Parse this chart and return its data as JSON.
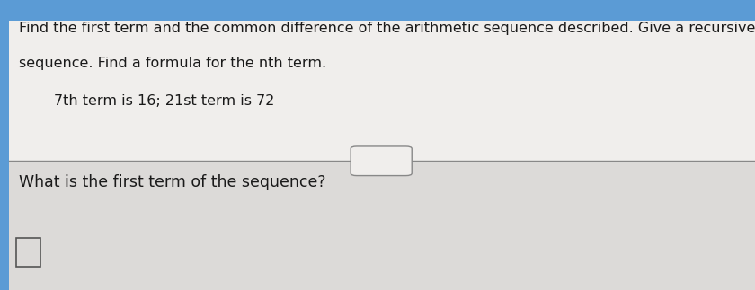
{
  "bg_color": "#e8e8e8",
  "top_section_bg": "#f0eeec",
  "bottom_section_bg": "#dcdad8",
  "top_bar_color": "#5b9bd5",
  "left_bar_color": "#5b9bd5",
  "divider_color": "#888888",
  "line1": "Find the first term and the common difference of the arithmetic sequence described. Give a recursive formula for the",
  "line2": "sequence. Find a formula for the nth term.",
  "indented_line": "7th term is 16; 21st term is 72",
  "question": "What is the first term of the sequence?",
  "title_fontsize": 11.5,
  "body_fontsize": 11.5,
  "question_fontsize": 12.5,
  "text_color": "#1a1a1a",
  "ellipsis_text": "..."
}
